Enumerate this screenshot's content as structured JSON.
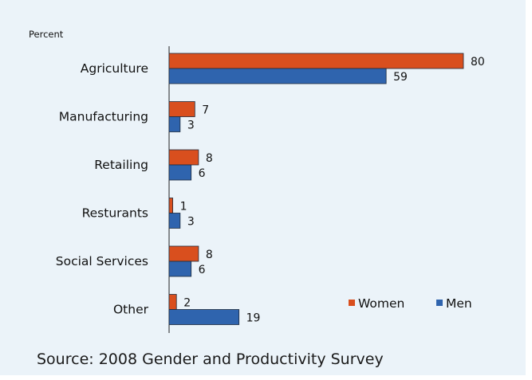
{
  "chart_data": {
    "type": "bar",
    "orientation": "horizontal",
    "ylabel": "Percent",
    "categories": [
      "Agriculture",
      "Manufacturing",
      "Retailing",
      "Resturants",
      "Social Services",
      "Other"
    ],
    "series": [
      {
        "name": "Women",
        "values": [
          80,
          7,
          8,
          1,
          8,
          2
        ],
        "color": "#d94f1e"
      },
      {
        "name": "Men",
        "values": [
          59,
          3,
          6,
          3,
          6,
          19
        ],
        "color": "#2f64ae"
      }
    ],
    "xlim": [
      0,
      80
    ],
    "grid": false,
    "legend_position": "bottom-right"
  },
  "source_text": "Source: 2008 Gender and Productivity Survey"
}
